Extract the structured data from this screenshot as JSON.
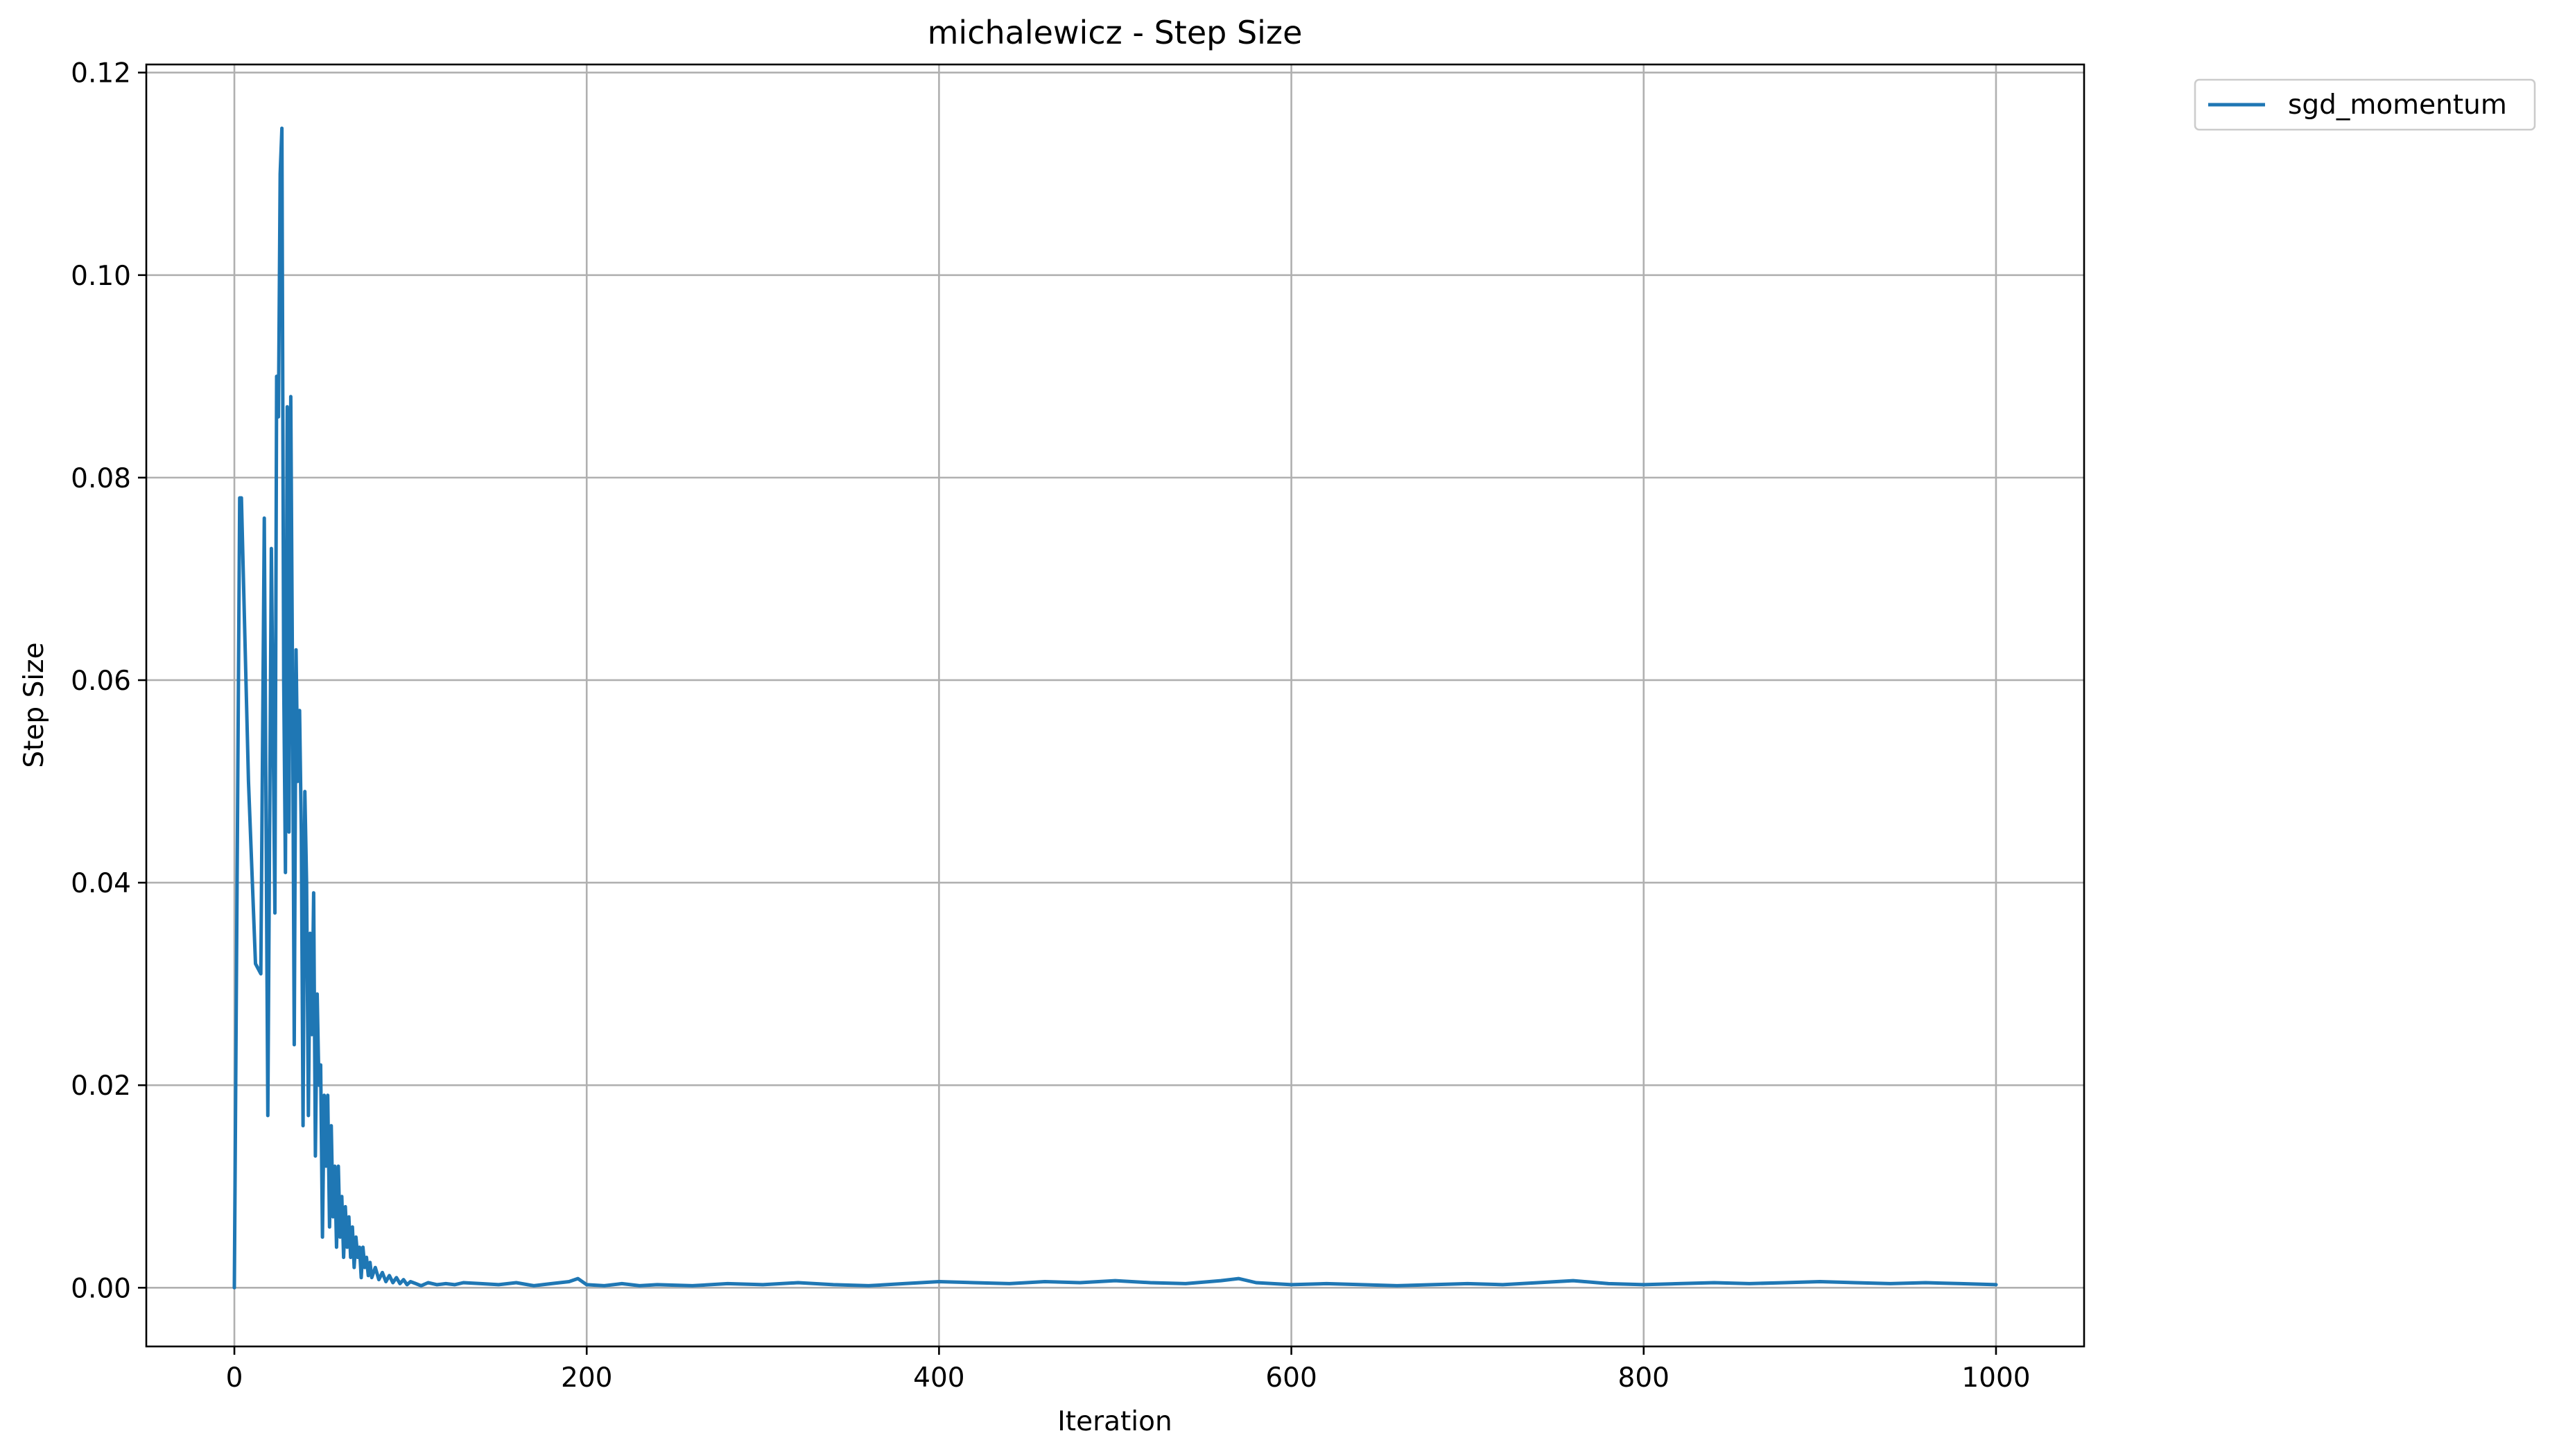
{
  "chart_data": {
    "type": "line",
    "title": "michalewicz - Step Size",
    "xlabel": "Iteration",
    "ylabel": "Step Size",
    "xlim": [
      -50,
      1050
    ],
    "ylim": [
      -0.0058,
      0.1208
    ],
    "xticks": [
      0,
      200,
      400,
      600,
      800,
      1000
    ],
    "xtick_labels": [
      "0",
      "200",
      "400",
      "600",
      "800",
      "1000"
    ],
    "yticks": [
      0.0,
      0.02,
      0.04,
      0.06,
      0.08,
      0.1,
      0.12
    ],
    "ytick_labels": [
      "0.00",
      "0.02",
      "0.04",
      "0.06",
      "0.08",
      "0.10",
      "0.12"
    ],
    "grid": true,
    "legend_position": "outside-top-right",
    "series": [
      {
        "name": "sgd_momentum",
        "color": "#1f77b4",
        "x": [
          0,
          3,
          4,
          8,
          12,
          15,
          17,
          19,
          21,
          23,
          24,
          25,
          26,
          27,
          28,
          29,
          30,
          31,
          32,
          33,
          34,
          35,
          36,
          37,
          38,
          39,
          40,
          41,
          42,
          43,
          44,
          45,
          46,
          47,
          48,
          49,
          50,
          51,
          52,
          53,
          54,
          55,
          56,
          57,
          58,
          59,
          60,
          61,
          62,
          63,
          64,
          65,
          66,
          67,
          68,
          69,
          70,
          71,
          72,
          73,
          74,
          75,
          76,
          77,
          78,
          80,
          82,
          84,
          86,
          88,
          90,
          92,
          94,
          96,
          98,
          100,
          103,
          106,
          110,
          115,
          120,
          125,
          130,
          140,
          150,
          160,
          170,
          180,
          190,
          195,
          200,
          210,
          220,
          230,
          240,
          260,
          280,
          300,
          320,
          340,
          360,
          380,
          400,
          420,
          440,
          460,
          480,
          500,
          520,
          540,
          560,
          570,
          580,
          600,
          620,
          640,
          660,
          680,
          700,
          720,
          740,
          760,
          780,
          800,
          820,
          840,
          860,
          880,
          900,
          920,
          940,
          960,
          980,
          1000
        ],
        "y": [
          0.0,
          0.078,
          0.078,
          0.05,
          0.032,
          0.031,
          0.076,
          0.017,
          0.073,
          0.037,
          0.09,
          0.086,
          0.11,
          0.1145,
          0.06,
          0.041,
          0.087,
          0.045,
          0.088,
          0.06,
          0.024,
          0.063,
          0.05,
          0.057,
          0.045,
          0.016,
          0.049,
          0.04,
          0.017,
          0.035,
          0.025,
          0.039,
          0.013,
          0.029,
          0.02,
          0.022,
          0.005,
          0.019,
          0.012,
          0.019,
          0.006,
          0.016,
          0.007,
          0.012,
          0.004,
          0.012,
          0.005,
          0.009,
          0.003,
          0.008,
          0.004,
          0.007,
          0.003,
          0.006,
          0.002,
          0.005,
          0.003,
          0.004,
          0.001,
          0.004,
          0.002,
          0.003,
          0.0012,
          0.0025,
          0.001,
          0.002,
          0.0008,
          0.0015,
          0.0006,
          0.0012,
          0.0005,
          0.001,
          0.0004,
          0.0008,
          0.0003,
          0.0006,
          0.0004,
          0.0002,
          0.0005,
          0.0003,
          0.0004,
          0.0003,
          0.0005,
          0.0004,
          0.0003,
          0.0005,
          0.0002,
          0.0004,
          0.0006,
          0.0009,
          0.0003,
          0.0002,
          0.0004,
          0.0002,
          0.0003,
          0.0002,
          0.0004,
          0.0003,
          0.0005,
          0.0003,
          0.0002,
          0.0004,
          0.0006,
          0.0005,
          0.0004,
          0.0006,
          0.0005,
          0.0007,
          0.0005,
          0.0004,
          0.0007,
          0.0009,
          0.0005,
          0.0003,
          0.0004,
          0.0003,
          0.0002,
          0.0003,
          0.0004,
          0.0003,
          0.0005,
          0.0007,
          0.0004,
          0.0003,
          0.0004,
          0.0005,
          0.0004,
          0.0005,
          0.0006,
          0.0005,
          0.0004,
          0.0005,
          0.0004,
          0.0003
        ]
      }
    ]
  }
}
